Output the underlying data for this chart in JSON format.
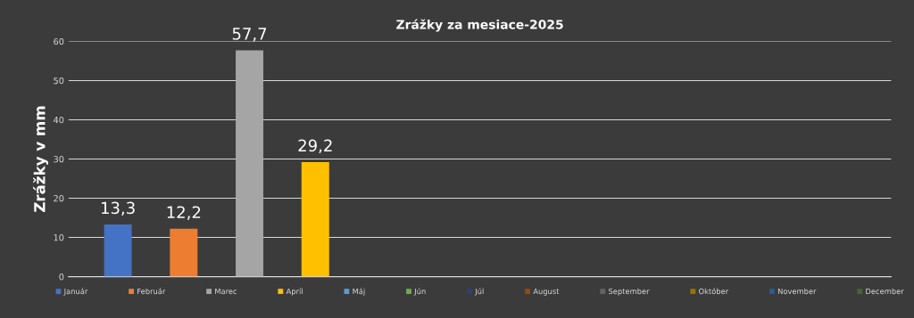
{
  "chart_data": {
    "type": "bar",
    "title": "Zrážky za mesiace-2025",
    "ylabel": "Zrážky v mm",
    "categories": [
      null
    ],
    "series": [
      {
        "name": "Január",
        "color": "#4472c4",
        "values": [
          13.3
        ],
        "value_labels": [
          "13,3"
        ]
      },
      {
        "name": "Február",
        "color": "#ed7d31",
        "values": [
          12.2
        ],
        "value_labels": [
          "12,2"
        ]
      },
      {
        "name": "Marec",
        "color": "#a5a5a5",
        "values": [
          57.7
        ],
        "value_labels": [
          "57,7"
        ]
      },
      {
        "name": "Apríl",
        "color": "#ffc000",
        "values": [
          29.2
        ],
        "value_labels": [
          "29,2"
        ]
      },
      {
        "name": "Máj",
        "color": "#5b9bd5",
        "values": [
          null
        ]
      },
      {
        "name": "Jún",
        "color": "#70ad47",
        "values": [
          null
        ]
      },
      {
        "name": "Júl",
        "color": "#264478",
        "values": [
          null
        ]
      },
      {
        "name": "August",
        "color": "#9e480e",
        "values": [
          null
        ]
      },
      {
        "name": "September",
        "color": "#636363",
        "values": [
          null
        ]
      },
      {
        "name": "Október",
        "color": "#997300",
        "values": [
          null
        ]
      },
      {
        "name": "November",
        "color": "#255e91",
        "values": [
          null
        ]
      },
      {
        "name": "December",
        "color": "#43682b",
        "values": [
          null
        ]
      }
    ],
    "ylim": [
      0,
      60
    ],
    "yticks": [
      0,
      10,
      20,
      30,
      40,
      50,
      60
    ],
    "grid": "y",
    "legend": "bottom",
    "tick_labels": "y"
  }
}
